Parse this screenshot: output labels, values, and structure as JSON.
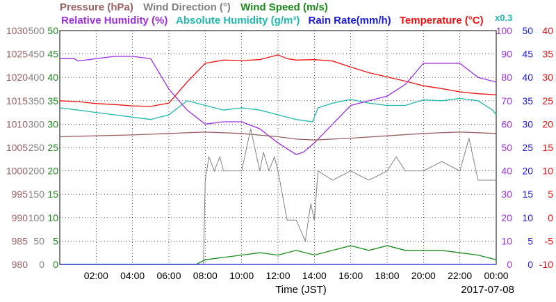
{
  "legend": {
    "row1": [
      {
        "text": "Pressure (hPa)",
        "color": "#9c5f5f"
      },
      {
        "text": "Wind Direction (°)",
        "color": "#808080"
      },
      {
        "text": "Wind Speed (m/s)",
        "color": "#1a8a1a"
      }
    ],
    "row2": [
      {
        "text": "Relative Humidity (%)",
        "color": "#9b2ee0"
      },
      {
        "text": "Absolute Humidity (g/m³)",
        "color": "#1fb8b0"
      },
      {
        "text": "Rain Rate(mm/h)",
        "color": "#1a1ad8"
      },
      {
        "text": "Temperature (°C)",
        "color": "#ee1010"
      }
    ],
    "scale_note": {
      "text": "x0.3",
      "color": "#1fb8b0"
    }
  },
  "xaxis": {
    "title": "Time (JST)",
    "date": "2017-07-08",
    "ticks": [
      "02:00",
      "04:00",
      "06:00",
      "08:00",
      "10:00",
      "12:00",
      "14:00",
      "16:00",
      "18:00",
      "20:00",
      "22:00",
      "00:00"
    ]
  },
  "axes": {
    "pressure": {
      "color": "#9c5f5f",
      "labels": [
        "980",
        "985",
        "990",
        "995",
        "1000",
        "1005",
        "1010",
        "1015",
        "1020",
        "1025",
        "1030"
      ]
    },
    "wind_direction": {
      "color": "#808080",
      "labels": [
        "0",
        "50",
        "100",
        "150",
        "200",
        "250",
        "300",
        "350",
        "400",
        "450",
        "500"
      ]
    },
    "wind_speed": {
      "color": "#1a8a1a",
      "labels": [
        "0",
        "5",
        "10",
        "15",
        "20",
        "25",
        "30",
        "35",
        "40",
        "45",
        "50"
      ]
    },
    "humidity": {
      "color": "#9b2ee0",
      "labels": [
        "0",
        "10",
        "20",
        "30",
        "40",
        "50",
        "60",
        "70",
        "80",
        "90",
        "100"
      ]
    },
    "rain": {
      "color": "#1a1ad8",
      "labels": [
        "0",
        "5",
        "10",
        "15",
        "20",
        "25",
        "30",
        "35",
        "40",
        "45",
        "50"
      ]
    },
    "temperature": {
      "color": "#ee1010",
      "labels": [
        "-10",
        "-5",
        "0",
        "5",
        "10",
        "15",
        "20",
        "25",
        "30",
        "35",
        "40"
      ]
    }
  },
  "chart_data": {
    "type": "line",
    "x_unit": "hour of day (JST)",
    "xlim": [
      0,
      24
    ],
    "grid": true,
    "series": [
      {
        "name": "Temperature (°C)",
        "axis": "temperature",
        "color": "#ee1010",
        "x": [
          0,
          1,
          2,
          3,
          4,
          5,
          6,
          7,
          8,
          9,
          10,
          11,
          12,
          12.5,
          13,
          14,
          15,
          16,
          17,
          18,
          19,
          20,
          21,
          22,
          23,
          24
        ],
        "y": [
          25,
          24.8,
          24.4,
          24.2,
          23.9,
          23.8,
          24.5,
          29,
          33,
          33.7,
          33.6,
          33.8,
          34.8,
          34,
          33.7,
          33.8,
          33.5,
          32.2,
          31,
          30.1,
          29.2,
          28.2,
          27.6,
          26.9,
          26.5,
          26.3
        ]
      },
      {
        "name": "Absolute Humidity (g/m³)",
        "axis": "temperature",
        "color": "#1fb8b0",
        "x": [
          0,
          1,
          2,
          3,
          4,
          5,
          6,
          7,
          8,
          9,
          10,
          11,
          12,
          13,
          13.9,
          14.2,
          15,
          16,
          17,
          18,
          19,
          20,
          21,
          22,
          23,
          23.8,
          24
        ],
        "y": [
          23.5,
          23,
          22.5,
          22,
          21.5,
          21,
          22,
          25,
          24,
          23,
          23.5,
          23,
          22,
          21,
          20.5,
          23.5,
          24.5,
          25.3,
          24.5,
          24,
          24,
          25.2,
          25,
          25.5,
          25,
          23,
          22
        ]
      },
      {
        "name": "Relative Humidity (%)",
        "axis": "humidity",
        "color": "#9b2ee0",
        "x": [
          0,
          0.8,
          1,
          2,
          3,
          4,
          5,
          6,
          7,
          8,
          9,
          10,
          11,
          12,
          13,
          13.4,
          14,
          15,
          16,
          17,
          18,
          19,
          20,
          21,
          22,
          23,
          24
        ],
        "y": [
          88,
          88,
          87,
          88,
          89,
          89,
          88,
          75,
          66,
          60,
          61,
          61,
          58,
          52,
          47,
          48,
          52,
          60,
          68,
          70,
          72,
          77,
          86,
          86,
          86,
          80,
          78
        ]
      },
      {
        "name": "Pressure (hPa)",
        "axis": "pressure",
        "color": "#9c5f5f",
        "x": [
          0,
          2,
          4,
          6,
          8,
          10,
          12,
          13,
          14,
          16,
          18,
          20,
          22,
          24
        ],
        "y": [
          1007.3,
          1007.5,
          1007.7,
          1008,
          1008.3,
          1008,
          1007.3,
          1006.8,
          1006.6,
          1007,
          1007.5,
          1008,
          1008.3,
          1008
        ]
      },
      {
        "name": "Wind Direction (°)",
        "axis": "wind_direction",
        "color": "#808080",
        "x": [
          7.9,
          8,
          8.2,
          8.5,
          8.8,
          9,
          10,
          10.5,
          11,
          11.2,
          11.5,
          11.8,
          12,
          12.5,
          13,
          13.5,
          13.8,
          14,
          14.2,
          15,
          16,
          17,
          18,
          18.5,
          19,
          20,
          21,
          22,
          22.5,
          23,
          24
        ],
        "y": [
          0,
          180,
          230,
          200,
          230,
          200,
          200,
          290,
          200,
          240,
          200,
          230,
          200,
          95,
          95,
          50,
          130,
          95,
          200,
          180,
          200,
          180,
          200,
          230,
          200,
          200,
          220,
          200,
          270,
          180,
          180
        ]
      },
      {
        "name": "Wind Speed (m/s)",
        "axis": "wind_speed",
        "color": "#1a8a1a",
        "x": [
          0,
          7.5,
          8,
          9,
          10,
          11,
          12,
          13,
          14,
          15,
          16,
          17,
          18,
          19,
          20,
          21,
          22,
          23,
          24
        ],
        "y": [
          0,
          0,
          1,
          1.5,
          2,
          2.5,
          2,
          3,
          2,
          3,
          4,
          3,
          4,
          3,
          3,
          3,
          2.5,
          2,
          1
        ]
      },
      {
        "name": "Rain Rate(mm/h)",
        "axis": "rain",
        "color": "#1a1ad8",
        "x": [
          0,
          24
        ],
        "y": [
          0,
          0
        ]
      }
    ]
  }
}
